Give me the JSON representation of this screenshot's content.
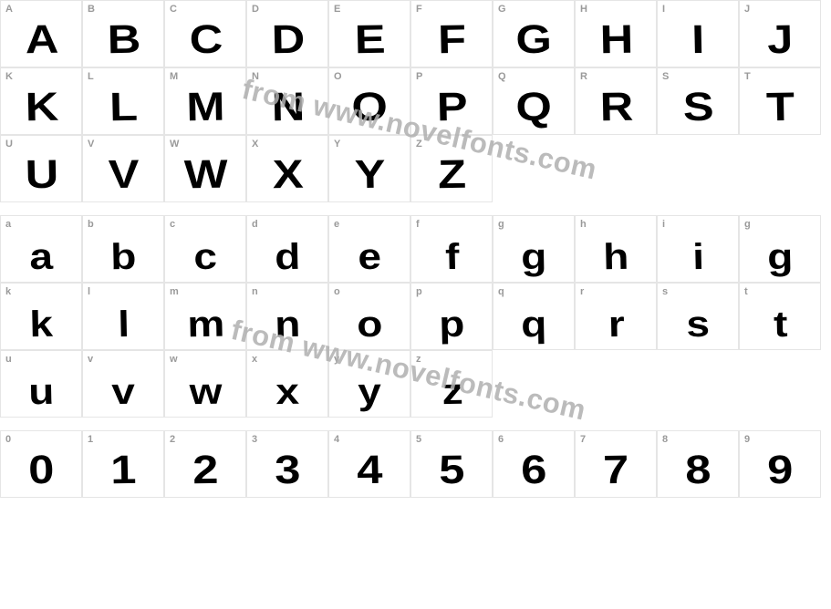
{
  "watermark_text": "from www.novelfonts.com",
  "watermark_color": "#b0b0b0",
  "border_color": "#e5e5e5",
  "label_color": "#9a9a9a",
  "glyph_color": "#000000",
  "sections": [
    {
      "kind": "uppercase",
      "rows": [
        [
          {
            "label": "A",
            "glyph": "A"
          },
          {
            "label": "B",
            "glyph": "B"
          },
          {
            "label": "C",
            "glyph": "C"
          },
          {
            "label": "D",
            "glyph": "D"
          },
          {
            "label": "E",
            "glyph": "E"
          },
          {
            "label": "F",
            "glyph": "F"
          },
          {
            "label": "G",
            "glyph": "G"
          },
          {
            "label": "H",
            "glyph": "H"
          },
          {
            "label": "I",
            "glyph": "I"
          },
          {
            "label": "J",
            "glyph": "J"
          }
        ],
        [
          {
            "label": "K",
            "glyph": "K"
          },
          {
            "label": "L",
            "glyph": "L"
          },
          {
            "label": "M",
            "glyph": "M"
          },
          {
            "label": "N",
            "glyph": "N"
          },
          {
            "label": "O",
            "glyph": "O"
          },
          {
            "label": "P",
            "glyph": "P"
          },
          {
            "label": "Q",
            "glyph": "Q"
          },
          {
            "label": "R",
            "glyph": "R"
          },
          {
            "label": "S",
            "glyph": "S"
          },
          {
            "label": "T",
            "glyph": "T"
          }
        ],
        [
          {
            "label": "U",
            "glyph": "U"
          },
          {
            "label": "V",
            "glyph": "V"
          },
          {
            "label": "W",
            "glyph": "W"
          },
          {
            "label": "X",
            "glyph": "X"
          },
          {
            "label": "Y",
            "glyph": "Y"
          },
          {
            "label": "Z",
            "glyph": "Z"
          }
        ]
      ]
    },
    {
      "kind": "lowercase",
      "rows": [
        [
          {
            "label": "a",
            "glyph": "a"
          },
          {
            "label": "b",
            "glyph": "b"
          },
          {
            "label": "c",
            "glyph": "c"
          },
          {
            "label": "d",
            "glyph": "d"
          },
          {
            "label": "e",
            "glyph": "e"
          },
          {
            "label": "f",
            "glyph": "f"
          },
          {
            "label": "g",
            "glyph": "g"
          },
          {
            "label": "h",
            "glyph": "h"
          },
          {
            "label": "i",
            "glyph": "i"
          },
          {
            "label": "g",
            "glyph": "g"
          }
        ],
        [
          {
            "label": "k",
            "glyph": "k"
          },
          {
            "label": "l",
            "glyph": "l"
          },
          {
            "label": "m",
            "glyph": "m"
          },
          {
            "label": "n",
            "glyph": "n"
          },
          {
            "label": "o",
            "glyph": "o"
          },
          {
            "label": "p",
            "glyph": "p"
          },
          {
            "label": "q",
            "glyph": "q"
          },
          {
            "label": "r",
            "glyph": "r"
          },
          {
            "label": "s",
            "glyph": "s"
          },
          {
            "label": "t",
            "glyph": "t"
          }
        ],
        [
          {
            "label": "u",
            "glyph": "u"
          },
          {
            "label": "v",
            "glyph": "v"
          },
          {
            "label": "w",
            "glyph": "w"
          },
          {
            "label": "x",
            "glyph": "x"
          },
          {
            "label": "y",
            "glyph": "y"
          },
          {
            "label": "z",
            "glyph": "z"
          }
        ]
      ]
    },
    {
      "kind": "digits",
      "rows": [
        [
          {
            "label": "0",
            "glyph": "0"
          },
          {
            "label": "1",
            "glyph": "1"
          },
          {
            "label": "2",
            "glyph": "2"
          },
          {
            "label": "3",
            "glyph": "3"
          },
          {
            "label": "4",
            "glyph": "4"
          },
          {
            "label": "5",
            "glyph": "5"
          },
          {
            "label": "6",
            "glyph": "6"
          },
          {
            "label": "7",
            "glyph": "7"
          },
          {
            "label": "8",
            "glyph": "8"
          },
          {
            "label": "9",
            "glyph": "9"
          }
        ]
      ]
    }
  ]
}
